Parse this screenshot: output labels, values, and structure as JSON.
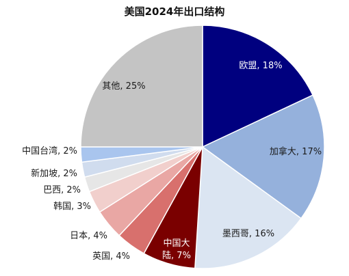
{
  "chart_data": {
    "type": "pie",
    "title": "美国2024年出口结构",
    "slices": [
      {
        "name": "欧盟",
        "value": 18,
        "label": "欧盟, 18%",
        "color": "#00007f",
        "text_color": "#ffffff"
      },
      {
        "name": "加拿大",
        "value": 17,
        "label": "加拿大, 17%",
        "color": "#95b1dc",
        "text_color": "#1a1a1a"
      },
      {
        "name": "墨西哥",
        "value": 16,
        "label": "墨西哥, 16%",
        "color": "#dbe5f2",
        "text_color": "#1a1a1a"
      },
      {
        "name": "中国大陆",
        "value": 7,
        "label_lines": [
          "中国大",
          "陆, 7%"
        ],
        "color": "#7a0000",
        "text_color": "#ffffff"
      },
      {
        "name": "英国",
        "value": 4,
        "label": "英国, 4%",
        "color": "#d8706d",
        "text_color": "#1a1a1a"
      },
      {
        "name": "日本",
        "value": 4,
        "label": "日本, 4%",
        "color": "#e9a7a4",
        "text_color": "#1a1a1a"
      },
      {
        "name": "韩国",
        "value": 3,
        "label": "韩国, 3%",
        "color": "#f1cfcc",
        "text_color": "#1a1a1a"
      },
      {
        "name": "巴西",
        "value": 2,
        "label": "巴西, 2%",
        "color": "#e6e6e6",
        "text_color": "#1a1a1a"
      },
      {
        "name": "新加坡",
        "value": 2,
        "label": "新加坡, 2%",
        "color": "#d0dcee",
        "text_color": "#1a1a1a"
      },
      {
        "name": "中国台湾",
        "value": 2,
        "label": "中国台湾, 2%",
        "color": "#a9c5ee",
        "text_color": "#1a1a1a"
      },
      {
        "name": "其他",
        "value": 25,
        "label": "其他, 25%",
        "color": "#c4c4c4",
        "text_color": "#1a1a1a"
      }
    ]
  }
}
